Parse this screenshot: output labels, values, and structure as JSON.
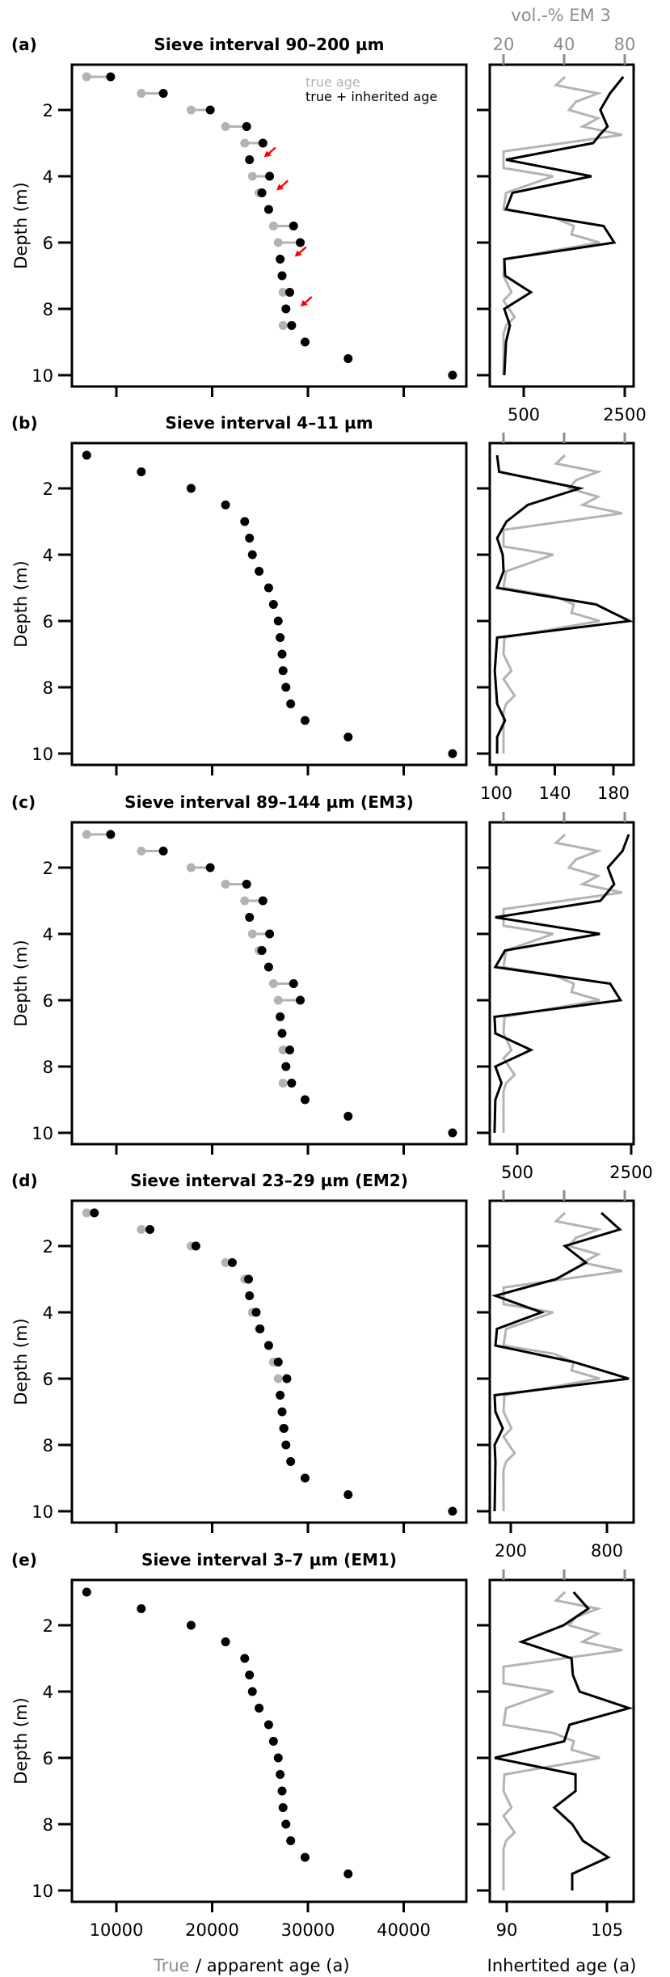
{
  "colors": {
    "black": "#000000",
    "grey": "#b3b3b3",
    "grey_text": "#8c8c8c",
    "arrow": "#ff0000"
  },
  "legend": {
    "true_age": "true age",
    "true_inherited_age": "true + inherited age"
  },
  "axes": {
    "ylabel": "Depth (m)",
    "xlabel_true": "True",
    "xlabel_rest": " / apparent age (a)",
    "xlabel_right": "Inhertited age (a)",
    "top_label": "vol.-% EM 3",
    "depth_ticks": [
      "2",
      "4",
      "6",
      "8",
      "10"
    ],
    "age_ticks": [
      "10000",
      "20000",
      "30000",
      "40000"
    ],
    "vol_ticks": [
      "20",
      "40",
      "80"
    ]
  },
  "chart_data": [
    {
      "type": "scatter",
      "panel": "(a)",
      "title": "Sieve interval 90–200 µm",
      "depth": [
        1.0,
        1.5,
        2.0,
        2.5,
        3.0,
        3.5,
        4.0,
        4.5,
        5.0,
        5.5,
        6.0,
        6.5,
        7.0,
        7.5,
        8.0,
        8.5,
        9.0,
        9.5,
        10.0
      ],
      "true_age": [
        6900,
        12600,
        17800,
        21400,
        23400,
        23900,
        24200,
        24900,
        25900,
        26400,
        26900,
        27100,
        27300,
        27400,
        27700,
        27400,
        29700,
        34200,
        45100
      ],
      "apparent_age": [
        9400,
        14900,
        19800,
        23600,
        25300,
        23900,
        26000,
        25200,
        25900,
        28500,
        29200,
        27100,
        27300,
        28100,
        27700,
        28300,
        29700,
        34200,
        45100
      ],
      "arrows_at_depth": [
        3.5,
        4.5,
        6.5,
        8.0
      ],
      "inherited_axis": {
        "ticks": [
          "500",
          "2500"
        ],
        "tick_values": [
          500,
          2500
        ],
        "scale": "log"
      },
      "inherited_line": {
        "depth": [
          1.0,
          1.5,
          2.0,
          2.5,
          2.75,
          3.0,
          3.5,
          4.0,
          4.5,
          5.0,
          5.25,
          5.5,
          6.0,
          6.5,
          7.0,
          7.5,
          8.0,
          8.5,
          9.0,
          10.0
        ],
        "value": [
          2442,
          1974,
          1694,
          1901,
          1677,
          1512,
          377,
          1470,
          418,
          377,
          805,
          1785,
          2114,
          367,
          372,
          561,
          367,
          401,
          377,
          367
        ]
      }
    },
    {
      "type": "scatter",
      "panel": "(b)",
      "title": "Sieve interval 4–11 µm",
      "depth": [
        1.0,
        1.5,
        2.0,
        2.5,
        3.0,
        3.5,
        4.0,
        4.5,
        5.0,
        5.5,
        6.0,
        6.5,
        7.0,
        7.5,
        8.0,
        8.5,
        9.0,
        9.5,
        10.0
      ],
      "true_age": [
        6900,
        12600,
        17800,
        21400,
        23400,
        23900,
        24200,
        24900,
        25900,
        26400,
        26900,
        27100,
        27300,
        27400,
        27700,
        28200,
        29700,
        34200,
        45100
      ],
      "apparent_age": [
        6900,
        12600,
        17800,
        21400,
        23400,
        23900,
        24200,
        24900,
        25900,
        26400,
        26900,
        27100,
        27300,
        27400,
        27700,
        28200,
        29700,
        34200,
        45100
      ],
      "arrows_at_depth": [],
      "inherited_axis": {
        "ticks": [
          "100",
          "140",
          "180"
        ],
        "tick_values": [
          100,
          140,
          180
        ],
        "scale": "linear"
      },
      "inherited_line": {
        "depth": [
          1.0,
          1.5,
          2.0,
          2.5,
          3.0,
          3.5,
          4.0,
          4.5,
          5.0,
          5.5,
          6.0,
          6.5,
          7.5,
          8.5,
          9.0,
          9.5,
          10.0
        ],
        "value": [
          100.6,
          102,
          157,
          121.5,
          107,
          100.6,
          104.4,
          105,
          100.6,
          168,
          191,
          100.6,
          99,
          100.6,
          106,
          100.6,
          100.6
        ]
      }
    },
    {
      "type": "scatter",
      "panel": "(c)",
      "title": "Sieve interval 89–144 µm (EM3)",
      "depth": [
        1.0,
        1.5,
        2.0,
        2.5,
        3.0,
        3.5,
        4.0,
        4.5,
        5.0,
        5.5,
        6.0,
        6.5,
        7.0,
        7.5,
        8.0,
        8.5,
        9.0,
        9.5,
        10.0
      ],
      "true_age": [
        6900,
        12600,
        17800,
        21400,
        23400,
        23900,
        24200,
        24900,
        25900,
        26400,
        26900,
        27100,
        27300,
        27400,
        27700,
        27400,
        29700,
        34200,
        45100
      ],
      "apparent_age": [
        9400,
        14900,
        19800,
        23600,
        25300,
        23900,
        26000,
        25200,
        25900,
        28500,
        29200,
        27100,
        27300,
        28100,
        27700,
        28300,
        29700,
        34200,
        45100
      ],
      "arrows_at_depth": [],
      "inherited_axis": {
        "ticks": [
          "500",
          "2500"
        ],
        "tick_values": [
          500,
          2500
        ],
        "scale": "log"
      },
      "inherited_line": {
        "depth": [
          1.0,
          1.5,
          2.0,
          2.5,
          3.0,
          3.5,
          4.0,
          4.5,
          5.0,
          5.5,
          6.0,
          6.5,
          7.0,
          7.5,
          8.0,
          8.5,
          9.0,
          10.0
        ],
        "value": [
          2416,
          2209,
          1797,
          1965,
          1621,
          367,
          1605,
          421,
          367,
          1858,
          2151,
          363,
          367,
          607,
          367,
          400,
          367,
          363
        ]
      }
    },
    {
      "type": "scatter",
      "panel": "(d)",
      "title": "Sieve interval 23–29 µm (EM2)",
      "depth": [
        1.0,
        1.5,
        2.0,
        2.5,
        3.0,
        3.5,
        4.0,
        4.5,
        5.0,
        5.5,
        6.0,
        6.5,
        7.0,
        7.5,
        8.0,
        8.5,
        9.0,
        9.5,
        10.0
      ],
      "true_age": [
        6900,
        12600,
        17800,
        21400,
        23400,
        23900,
        24200,
        24900,
        25900,
        26400,
        26900,
        27100,
        27300,
        27400,
        27700,
        28200,
        29700,
        34200,
        45100
      ],
      "apparent_age": [
        7700,
        13500,
        18300,
        22100,
        23800,
        23900,
        24600,
        25000,
        25900,
        26900,
        27800,
        27100,
        27300,
        27500,
        27700,
        28200,
        29700,
        34200,
        45100
      ],
      "arrows_at_depth": [],
      "inherited_axis": {
        "ticks": [
          "200",
          "800"
        ],
        "tick_values": [
          200,
          800
        ],
        "scale": "linear"
      },
      "inherited_line": {
        "depth": [
          1.0,
          1.5,
          2.0,
          2.5,
          3.0,
          3.5,
          4.0,
          4.5,
          5.0,
          5.5,
          6.0,
          6.5,
          7.0,
          7.5,
          8.0,
          8.5,
          10.0
        ],
        "value": [
          765,
          880,
          538,
          669,
          482,
          104,
          392,
          114,
          104,
          593,
          936,
          99,
          104,
          150,
          99,
          104,
          99
        ]
      }
    },
    {
      "type": "scatter",
      "panel": "(e)",
      "title": "Sieve interval 3–7 µm (EM1)",
      "depth": [
        1.0,
        1.5,
        2.0,
        2.5,
        3.0,
        3.5,
        4.0,
        4.5,
        5.0,
        5.5,
        6.0,
        6.5,
        7.0,
        7.5,
        8.0,
        8.5,
        9.0,
        9.5
      ],
      "true_age": [
        6900,
        12600,
        17800,
        21400,
        23400,
        23900,
        24200,
        24900,
        25900,
        26400,
        26900,
        27100,
        27300,
        27400,
        27700,
        28200,
        29700,
        34200
      ],
      "apparent_age": [
        6900,
        12600,
        17800,
        21400,
        23400,
        23900,
        24200,
        24900,
        25900,
        26400,
        26900,
        27100,
        27300,
        27400,
        27700,
        28200,
        29700,
        34200
      ],
      "arrows_at_depth": [],
      "inherited_axis": {
        "ticks": [
          "90",
          "105"
        ],
        "tick_values": [
          90,
          105
        ],
        "scale": "linear"
      },
      "inherited_line": {
        "depth": [
          1.0,
          1.5,
          2.0,
          2.5,
          3.0,
          3.5,
          4.0,
          4.5,
          5.0,
          5.5,
          6.0,
          6.5,
          7.0,
          7.5,
          8.0,
          8.5,
          9.0,
          9.5,
          10.0
        ],
        "value": [
          100.0,
          102.2,
          98.5,
          92.2,
          99.7,
          99.9,
          100.9,
          108.3,
          99.4,
          98.6,
          88.2,
          100.3,
          100.3,
          97.1,
          99.8,
          101.4,
          105.2,
          99.8,
          99.8
        ]
      }
    }
  ],
  "vol_em3": {
    "depth": [
      1.0,
      1.25,
      1.5,
      1.75,
      2.0,
      2.25,
      2.5,
      2.75,
      3.25,
      3.75,
      4.0,
      4.5,
      5.0,
      5.25,
      5.5,
      5.75,
      6.0,
      6.5,
      7.0,
      7.5,
      7.75,
      8.25,
      8.5,
      8.75,
      10.0
    ],
    "value": [
      40.4,
      36.5,
      58.9,
      45.8,
      42.3,
      58.9,
      49.4,
      77.7,
      20,
      20,
      35.3,
      20.6,
      20,
      35.6,
      44.7,
      43.5,
      60.1,
      20.2,
      20,
      21.9,
      20,
      22.7,
      20.6,
      20,
      20
    ]
  }
}
